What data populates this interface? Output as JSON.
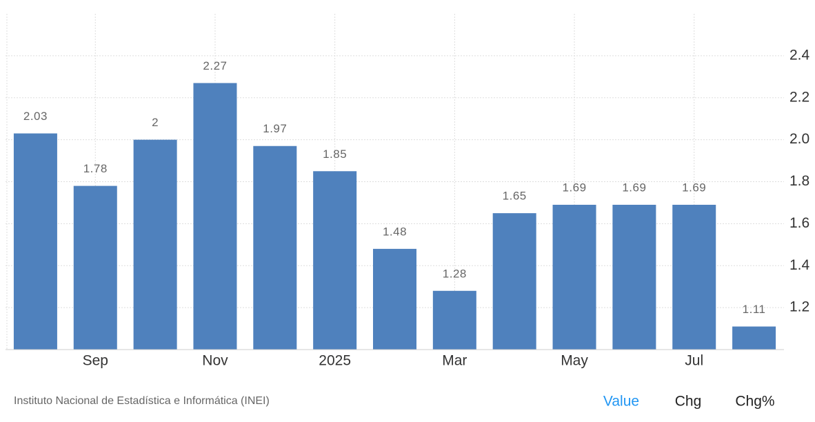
{
  "chart_data": {
    "type": "bar",
    "categories": [
      null,
      "Sep",
      null,
      "Nov",
      null,
      "2025",
      null,
      "Mar",
      null,
      "May",
      null,
      "Jul",
      null
    ],
    "values": [
      2.03,
      1.78,
      2,
      2.27,
      1.97,
      1.85,
      1.48,
      1.28,
      1.65,
      1.69,
      1.69,
      1.69,
      1.11
    ],
    "color": "#4f81bd",
    "ylim": [
      1.0,
      2.6
    ],
    "yticks": [
      1.2,
      1.4,
      1.6,
      1.8,
      {
        "value": 2,
        "label": "2.0"
      },
      2.2,
      2.4
    ],
    "grid": true
  },
  "footer": {
    "source": "Instituto Nacional de Estadística e Informática (INEI)",
    "buttons": [
      "Value",
      "Chg",
      "Chg%"
    ]
  }
}
